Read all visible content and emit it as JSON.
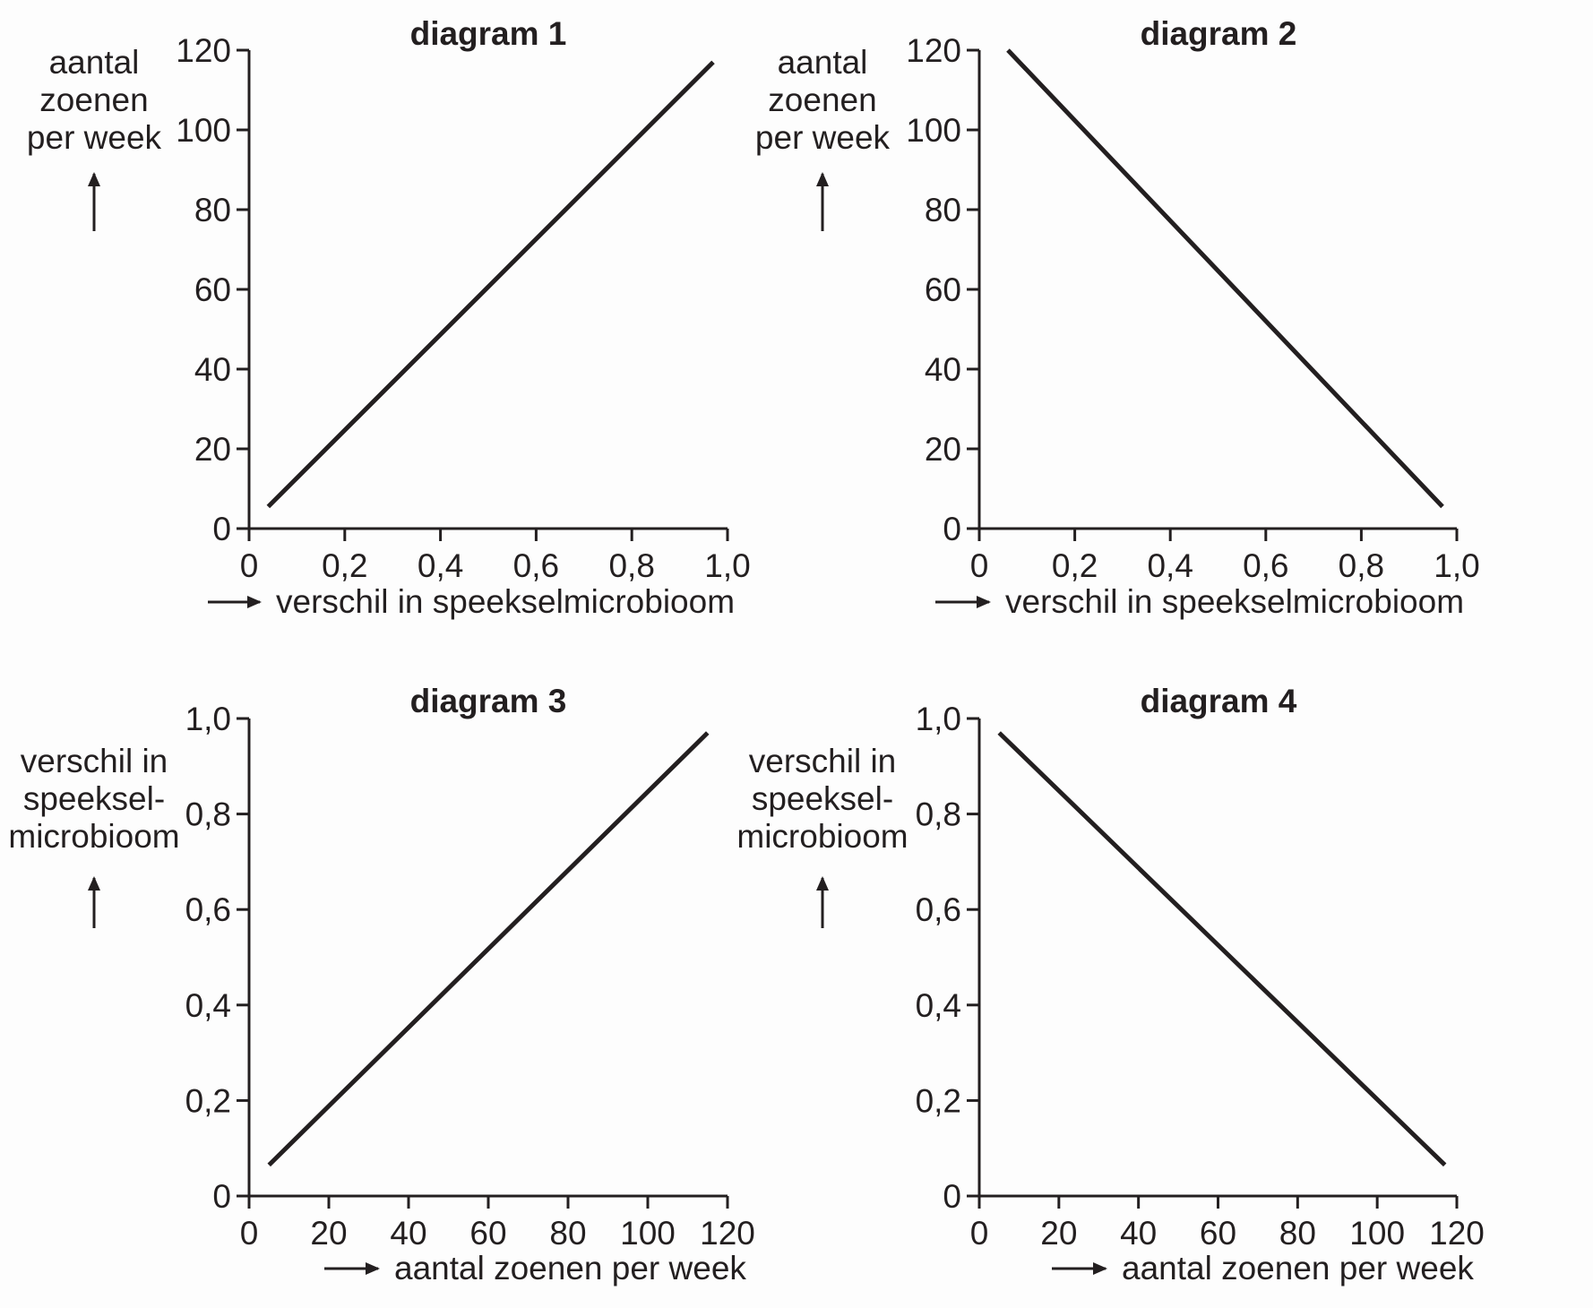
{
  "chart_data": [
    {
      "type": "line",
      "title": "diagram 1",
      "xlabel": "verschil in speekselmicrobioom",
      "ylabel": [
        "aantal",
        "zoenen",
        "per week"
      ],
      "xlim": [
        0,
        1.0
      ],
      "ylim": [
        0,
        120
      ],
      "xticks": [
        0,
        0.2,
        0.4,
        0.6,
        0.8,
        1.0
      ],
      "xtick_labels": [
        "0",
        "0,2",
        "0,4",
        "0,6",
        "0,8",
        "1,0"
      ],
      "yticks": [
        0,
        20,
        40,
        60,
        80,
        100,
        120
      ],
      "ytick_labels": [
        "0",
        "20",
        "40",
        "60",
        "80",
        "100",
        "120"
      ],
      "grid": false,
      "series": [
        {
          "x": [
            0.04,
            0.97
          ],
          "y": [
            5.5,
            117
          ]
        }
      ]
    },
    {
      "type": "line",
      "title": "diagram 2",
      "xlabel": "verschil in speekselmicrobioom",
      "ylabel": [
        "aantal",
        "zoenen",
        "per week"
      ],
      "xlim": [
        0,
        1.0
      ],
      "ylim": [
        0,
        120
      ],
      "xticks": [
        0,
        0.2,
        0.4,
        0.6,
        0.8,
        1.0
      ],
      "xtick_labels": [
        "0",
        "0,2",
        "0,4",
        "0,6",
        "0,8",
        "1,0"
      ],
      "yticks": [
        0,
        20,
        40,
        60,
        80,
        100,
        120
      ],
      "ytick_labels": [
        "0",
        "20",
        "40",
        "60",
        "80",
        "100",
        "120"
      ],
      "grid": false,
      "series": [
        {
          "x": [
            0.06,
            0.97
          ],
          "y": [
            120,
            5.5
          ]
        }
      ]
    },
    {
      "type": "line",
      "title": "diagram 3",
      "xlabel": "aantal zoenen per week",
      "ylabel": [
        "verschil in",
        "speeksel-",
        "microbioom"
      ],
      "xlim": [
        0,
        120
      ],
      "ylim": [
        0,
        1.0
      ],
      "xticks": [
        0,
        20,
        40,
        60,
        80,
        100,
        120
      ],
      "xtick_labels": [
        "0",
        "20",
        "40",
        "60",
        "80",
        "100",
        "120"
      ],
      "yticks": [
        0,
        0.2,
        0.4,
        0.6,
        0.8,
        1.0
      ],
      "ytick_labels": [
        "0",
        "0,2",
        "0,4",
        "0,6",
        "0,8",
        "1,0"
      ],
      "grid": false,
      "series": [
        {
          "x": [
            5,
            115
          ],
          "y": [
            0.065,
            0.97
          ]
        }
      ]
    },
    {
      "type": "line",
      "title": "diagram 4",
      "xlabel": "aantal zoenen per week",
      "ylabel": [
        "verschil in",
        "speeksel-",
        "microbioom"
      ],
      "xlim": [
        0,
        120
      ],
      "ylim": [
        0,
        1.0
      ],
      "xticks": [
        0,
        20,
        40,
        60,
        80,
        100,
        120
      ],
      "xtick_labels": [
        "0",
        "20",
        "40",
        "60",
        "80",
        "100",
        "120"
      ],
      "yticks": [
        0,
        0.2,
        0.4,
        0.6,
        0.8,
        1.0
      ],
      "ytick_labels": [
        "0",
        "0,2",
        "0,4",
        "0,6",
        "0,8",
        "1,0"
      ],
      "grid": false,
      "series": [
        {
          "x": [
            5,
            117
          ],
          "y": [
            0.97,
            0.065
          ]
        }
      ]
    }
  ]
}
